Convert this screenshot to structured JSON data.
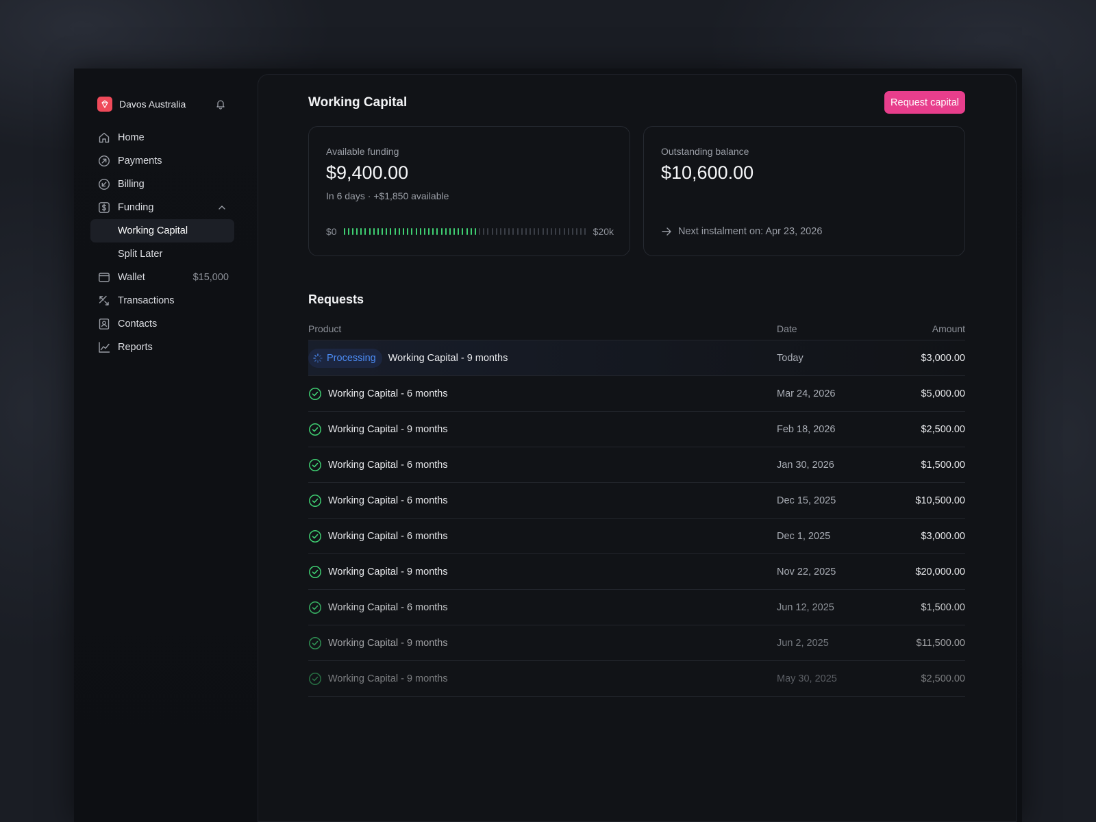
{
  "sidebar": {
    "org_name": "Davos Australia",
    "items": [
      {
        "label": "Home",
        "icon": "home-icon"
      },
      {
        "label": "Payments",
        "icon": "arrow-up-right-circle-icon"
      },
      {
        "label": "Billing",
        "icon": "arrow-down-left-circle-icon"
      },
      {
        "label": "Funding",
        "icon": "dollar-square-icon"
      },
      {
        "label": "Working Capital"
      },
      {
        "label": "Split Later"
      },
      {
        "label": "Wallet",
        "icon": "wallet-icon",
        "value": "$15,000"
      },
      {
        "label": "Transactions",
        "icon": "transactions-icon"
      },
      {
        "label": "Contacts",
        "icon": "contacts-icon"
      },
      {
        "label": "Reports",
        "icon": "chart-line-icon"
      }
    ]
  },
  "header": {
    "title": "Working Capital",
    "request_button": "Request capital"
  },
  "cards": {
    "available": {
      "label": "Available funding",
      "value": "$9,400.00",
      "sub": "In 6 days · +$1,850 available",
      "bar_min": "$0",
      "bar_max": "$20k",
      "fill_fraction": 0.56
    },
    "outstanding": {
      "label": "Outstanding balance",
      "value": "$10,600.00",
      "next": "Next instalment on: Apr 23, 2026"
    }
  },
  "requests": {
    "title": "Requests",
    "columns": {
      "product": "Product",
      "date": "Date",
      "amount": "Amount"
    },
    "processing_label": "Processing",
    "rows": [
      {
        "product": "Working Capital - 9 months",
        "date": "Today",
        "amount": "$3,000.00",
        "status": "processing"
      },
      {
        "product": "Working Capital - 6 months",
        "date": "Mar 24, 2026",
        "amount": "$5,000.00",
        "status": "completed"
      },
      {
        "product": "Working Capital - 9 months",
        "date": "Feb 18, 2026",
        "amount": "$2,500.00",
        "status": "completed"
      },
      {
        "product": "Working Capital - 6 months",
        "date": "Jan 30, 2026",
        "amount": "$1,500.00",
        "status": "completed"
      },
      {
        "product": "Working Capital - 6 months",
        "date": "Dec 15, 2025",
        "amount": "$10,500.00",
        "status": "completed"
      },
      {
        "product": "Working Capital - 6 months",
        "date": "Dec 1, 2025",
        "amount": "$3,000.00",
        "status": "completed"
      },
      {
        "product": "Working Capital - 9 months",
        "date": "Nov 22, 2025",
        "amount": "$20,000.00",
        "status": "completed"
      },
      {
        "product": "Working Capital - 6 months",
        "date": "Jun 12, 2025",
        "amount": "$1,500.00",
        "status": "completed"
      },
      {
        "product": "Working Capital - 9 months",
        "date": "Jun 2, 2025",
        "amount": "$11,500.00",
        "status": "completed"
      },
      {
        "product": "Working Capital - 9 months",
        "date": "May 30, 2025",
        "amount": "$2,500.00",
        "status": "completed"
      }
    ]
  },
  "colors": {
    "accent": "#e83e8c",
    "success": "#3fcf72",
    "processing": "#4c8cf5",
    "brand": "#ef4a5a"
  }
}
